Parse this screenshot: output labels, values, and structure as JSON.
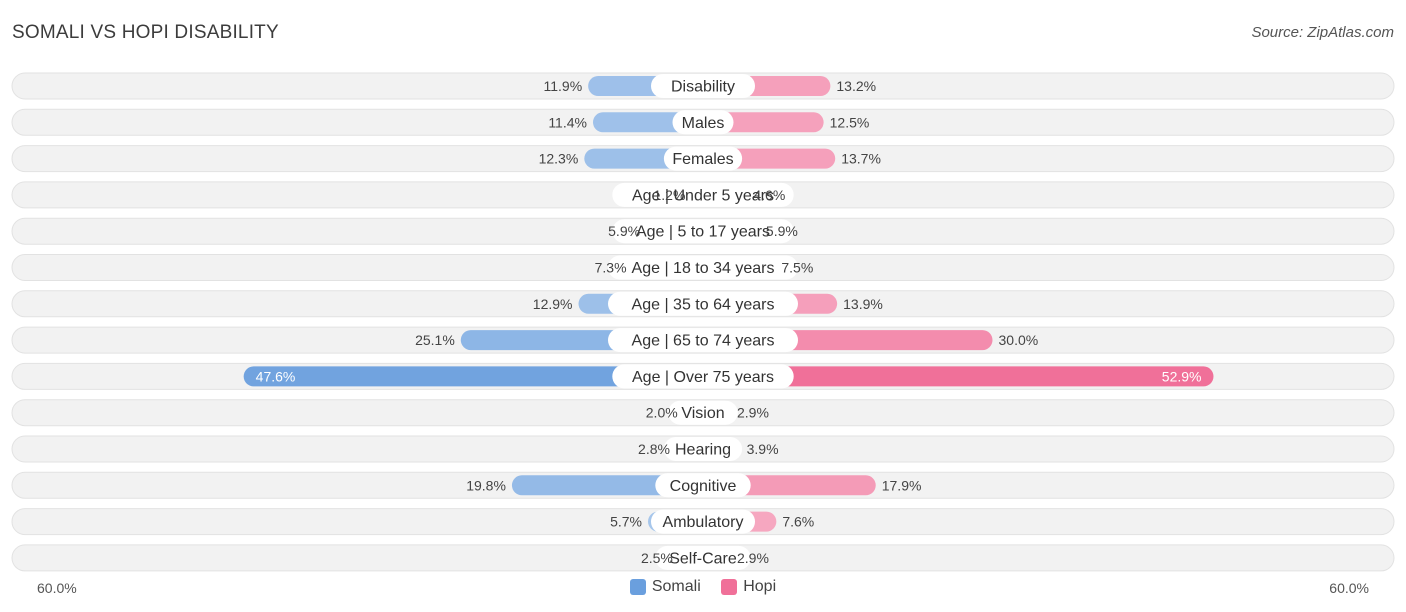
{
  "title": "SOMALI VS HOPI DISABILITY",
  "source": "Source: ZipAtlas.com",
  "axis": {
    "left_label": "60.0%",
    "right_label": "60.0%"
  },
  "legend": [
    {
      "label": "Somali",
      "color": "#6a9fde"
    },
    {
      "label": "Hopi",
      "color": "#f07099"
    }
  ],
  "chart_data": {
    "type": "bar",
    "orientation": "diverging-horizontal",
    "xlim": [
      -60,
      60
    ],
    "unit": "%",
    "categories": [
      "Disability",
      "Males",
      "Females",
      "Age | Under 5 years",
      "Age | 5 to 17 years",
      "Age | 18 to 34 years",
      "Age | 35 to 64 years",
      "Age | 65 to 74 years",
      "Age | Over 75 years",
      "Vision",
      "Hearing",
      "Cognitive",
      "Ambulatory",
      "Self-Care"
    ],
    "series": [
      {
        "name": "Somali",
        "color": "#6a9fde",
        "values": [
          11.9,
          11.4,
          12.3,
          1.2,
          5.9,
          7.3,
          12.9,
          25.1,
          47.6,
          2.0,
          2.8,
          19.8,
          5.7,
          2.5
        ],
        "labels": [
          "11.9%",
          "11.4%",
          "12.3%",
          "1.2%",
          "5.9%",
          "7.3%",
          "12.9%",
          "25.1%",
          "47.6%",
          "2.0%",
          "2.8%",
          "19.8%",
          "5.7%",
          "2.5%"
        ]
      },
      {
        "name": "Hopi",
        "color": "#f07099",
        "values": [
          13.2,
          12.5,
          13.7,
          4.6,
          5.9,
          7.5,
          13.9,
          30.0,
          52.9,
          2.9,
          3.9,
          17.9,
          7.6,
          2.9
        ],
        "labels": [
          "13.2%",
          "12.5%",
          "13.7%",
          "4.6%",
          "5.9%",
          "7.5%",
          "13.9%",
          "30.0%",
          "52.9%",
          "2.9%",
          "3.9%",
          "17.9%",
          "7.6%",
          "2.9%"
        ]
      }
    ],
    "legend_position": "bottom-center",
    "grid": false
  }
}
